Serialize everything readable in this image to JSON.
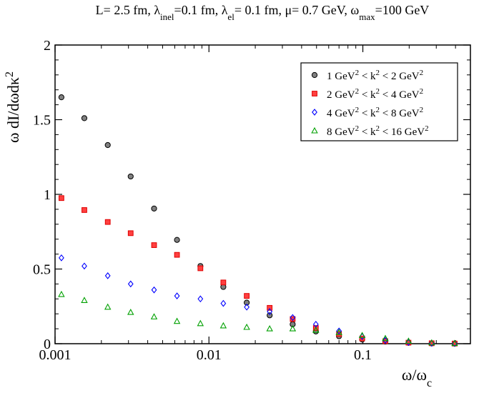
{
  "chart_data": {
    "type": "scatter",
    "title": {
      "parts": [
        {
          "t": "L= 2.5 fm, λ"
        },
        {
          "t": "inel",
          "sub": true
        },
        {
          "t": "=0.1 fm, λ"
        },
        {
          "t": "el",
          "sub": true
        },
        {
          "t": "= 0.1 fm, μ= 0.7 GeV, ω"
        },
        {
          "t": "max",
          "sub": true
        },
        {
          "t": "=100 GeV"
        }
      ]
    },
    "xlabel": {
      "parts": [
        {
          "t": "ω/ω"
        },
        {
          "t": "c",
          "sub": true
        }
      ]
    },
    "ylabel": {
      "parts": [
        {
          "t": "ω dI/dωdκ"
        },
        {
          "t": "2",
          "sup": true
        }
      ]
    },
    "xscale": "log",
    "xlim": [
      0.001,
      0.5
    ],
    "ylim": [
      0,
      2
    ],
    "x_ticks": [
      {
        "value": 0.001,
        "label": "0.001"
      },
      {
        "value": 0.01,
        "label": "0.01"
      },
      {
        "value": 0.1,
        "label": "0.1"
      }
    ],
    "y_ticks": [
      {
        "value": 0,
        "label": "0"
      },
      {
        "value": 0.5,
        "label": "0.5"
      },
      {
        "value": 1,
        "label": "1"
      },
      {
        "value": 1.5,
        "label": "1.5"
      },
      {
        "value": 2,
        "label": "2"
      }
    ],
    "legend_position": "top-right",
    "x": [
      0.0011,
      0.00155,
      0.0022,
      0.0031,
      0.0044,
      0.0062,
      0.0088,
      0.0124,
      0.0176,
      0.0248,
      0.035,
      0.0495,
      0.07,
      0.099,
      0.14,
      0.198,
      0.28,
      0.395
    ],
    "series": [
      {
        "name": "1 GeV² < k² < 2 GeV²",
        "legend_parts": [
          {
            "t": "1 GeV"
          },
          {
            "t": "2",
            "sup": true
          },
          {
            "t": " < k"
          },
          {
            "t": "2",
            "sup": true
          },
          {
            "t": " < 2 GeV"
          },
          {
            "t": "2",
            "sup": true
          }
        ],
        "marker": "circle",
        "fill": "#808080",
        "stroke": "#000000",
        "values": [
          1.65,
          1.51,
          1.33,
          1.12,
          0.905,
          0.695,
          0.52,
          0.38,
          0.275,
          0.19,
          0.13,
          0.082,
          0.05,
          0.028,
          0.014,
          0.006,
          0.002,
          0.001
        ]
      },
      {
        "name": "2 GeV² < k² < 4 GeV²",
        "legend_parts": [
          {
            "t": "2 GeV"
          },
          {
            "t": "2",
            "sup": true
          },
          {
            "t": " < k"
          },
          {
            "t": "2",
            "sup": true
          },
          {
            "t": " < 4 GeV"
          },
          {
            "t": "2",
            "sup": true
          }
        ],
        "marker": "square",
        "fill": "#ff4040",
        "stroke": "#e00000",
        "values": [
          0.975,
          0.895,
          0.815,
          0.74,
          0.66,
          0.595,
          0.505,
          0.41,
          0.32,
          0.24,
          0.165,
          0.105,
          0.065,
          0.035,
          0.017,
          0.007,
          0.003,
          0.001
        ]
      },
      {
        "name": "4 GeV² < k² < 8 GeV²",
        "legend_parts": [
          {
            "t": "4 GeV"
          },
          {
            "t": "2",
            "sup": true
          },
          {
            "t": " < k"
          },
          {
            "t": "2",
            "sup": true
          },
          {
            "t": " < 8 GeV"
          },
          {
            "t": "2",
            "sup": true
          }
        ],
        "marker": "diamond",
        "fill": "none",
        "stroke": "#0000ff",
        "values": [
          0.575,
          0.52,
          0.455,
          0.4,
          0.36,
          0.32,
          0.3,
          0.27,
          0.245,
          0.215,
          0.175,
          0.13,
          0.085,
          0.048,
          0.022,
          0.009,
          0.003,
          0.001
        ]
      },
      {
        "name": "8 GeV² < k² < 16 GeV²",
        "legend_parts": [
          {
            "t": "8 GeV"
          },
          {
            "t": "2",
            "sup": true
          },
          {
            "t": " < k"
          },
          {
            "t": "2",
            "sup": true
          },
          {
            "t": " < 16 GeV"
          },
          {
            "t": "2",
            "sup": true
          }
        ],
        "marker": "triangle",
        "fill": "none",
        "stroke": "#00a000",
        "values": [
          0.33,
          0.29,
          0.245,
          0.21,
          0.18,
          0.15,
          0.135,
          0.12,
          0.11,
          0.1,
          0.1,
          0.09,
          0.075,
          0.055,
          0.035,
          0.017,
          0.006,
          0.002
        ]
      }
    ]
  }
}
